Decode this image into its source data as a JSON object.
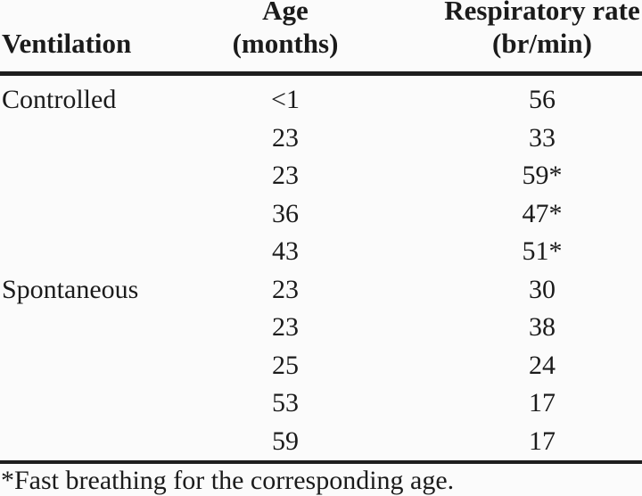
{
  "table": {
    "header": {
      "ventilation": {
        "line1": "",
        "line2": "Ventilation"
      },
      "age": {
        "line1": "Age",
        "line2": "(months)"
      },
      "respiratory_rate": {
        "line1": "Respiratory rate",
        "line2": "(br/min)"
      }
    },
    "rows": [
      {
        "ventilation": "Controlled",
        "age": "<1",
        "rate": "56"
      },
      {
        "ventilation": "",
        "age": "23",
        "rate": "33"
      },
      {
        "ventilation": "",
        "age": "23",
        "rate": "59*"
      },
      {
        "ventilation": "",
        "age": "36",
        "rate": "47*"
      },
      {
        "ventilation": "",
        "age": "43",
        "rate": "51*"
      },
      {
        "ventilation": "Spontaneous",
        "age": "23",
        "rate": "30"
      },
      {
        "ventilation": "",
        "age": "23",
        "rate": "38"
      },
      {
        "ventilation": "",
        "age": "25",
        "rate": "24"
      },
      {
        "ventilation": "",
        "age": "53",
        "rate": "17"
      },
      {
        "ventilation": "",
        "age": "59",
        "rate": "17"
      }
    ],
    "footnote": "*Fast breathing for the corresponding age."
  },
  "colors": {
    "text": "#1b1b1b",
    "rule": "#1e1e1e",
    "background": "#fbfbfb"
  }
}
